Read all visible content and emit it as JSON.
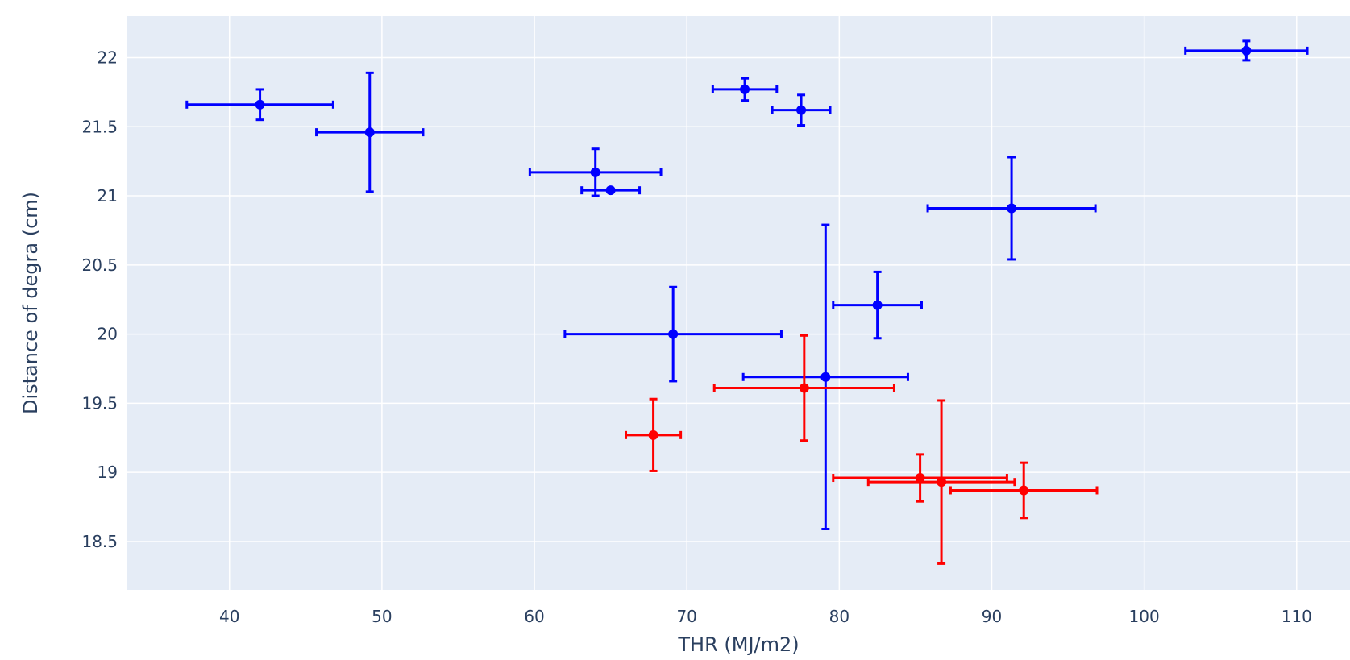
{
  "chart_data": {
    "type": "scatter",
    "title": "",
    "xlabel": "THR (MJ/m2)",
    "ylabel": "Distance of degra (cm)",
    "xlim": [
      33.3,
      113.5
    ],
    "ylim": [
      18.15,
      22.3
    ],
    "x_ticks": [
      40,
      50,
      60,
      70,
      80,
      90,
      100,
      110
    ],
    "y_ticks": [
      18.5,
      19,
      19.5,
      20,
      20.5,
      21,
      21.5,
      22
    ],
    "grid": true,
    "legend": "none",
    "colors": {
      "plot_bg": "#e5ecf6",
      "grid": "#ffffff",
      "text": "#2a3f5f"
    },
    "series": [
      {
        "color": "#0000ff",
        "points": [
          {
            "x": 42.0,
            "y": 21.66,
            "x_err": 4.8,
            "y_err": 0.11
          },
          {
            "x": 49.2,
            "y": 21.46,
            "x_err": 3.5,
            "y_err": 0.43
          },
          {
            "x": 64.0,
            "y": 21.17,
            "x_err": 4.3,
            "y_err": 0.17
          },
          {
            "x": 65.0,
            "y": 21.04,
            "x_err": 1.9,
            "y_err": 0.01
          },
          {
            "x": 73.8,
            "y": 21.77,
            "x_err": 2.1,
            "y_err": 0.08
          },
          {
            "x": 77.5,
            "y": 21.62,
            "x_err": 1.9,
            "y_err": 0.11
          },
          {
            "x": 106.7,
            "y": 22.05,
            "x_err": 4.0,
            "y_err": 0.07
          },
          {
            "x": 91.3,
            "y": 20.91,
            "x_err": 5.5,
            "y_err": 0.37
          },
          {
            "x": 82.5,
            "y": 20.21,
            "x_err": 2.9,
            "y_err": 0.24
          },
          {
            "x": 69.1,
            "y": 20.0,
            "x_err": 7.1,
            "y_err": 0.34
          },
          {
            "x": 79.1,
            "y": 19.69,
            "x_err": 5.4,
            "y_err": 1.1
          }
        ]
      },
      {
        "color": "#ff0000",
        "points": [
          {
            "x": 67.8,
            "y": 19.27,
            "x_err": 1.8,
            "y_err": 0.26
          },
          {
            "x": 77.7,
            "y": 19.61,
            "x_err": 5.9,
            "y_err": 0.38
          },
          {
            "x": 85.3,
            "y": 18.96,
            "x_err": 5.7,
            "y_err": 0.17
          },
          {
            "x": 86.7,
            "y": 18.93,
            "x_err": 4.8,
            "y_err": 0.59
          },
          {
            "x": 92.1,
            "y": 18.87,
            "x_err": 4.8,
            "y_err": 0.2
          }
        ]
      }
    ]
  }
}
